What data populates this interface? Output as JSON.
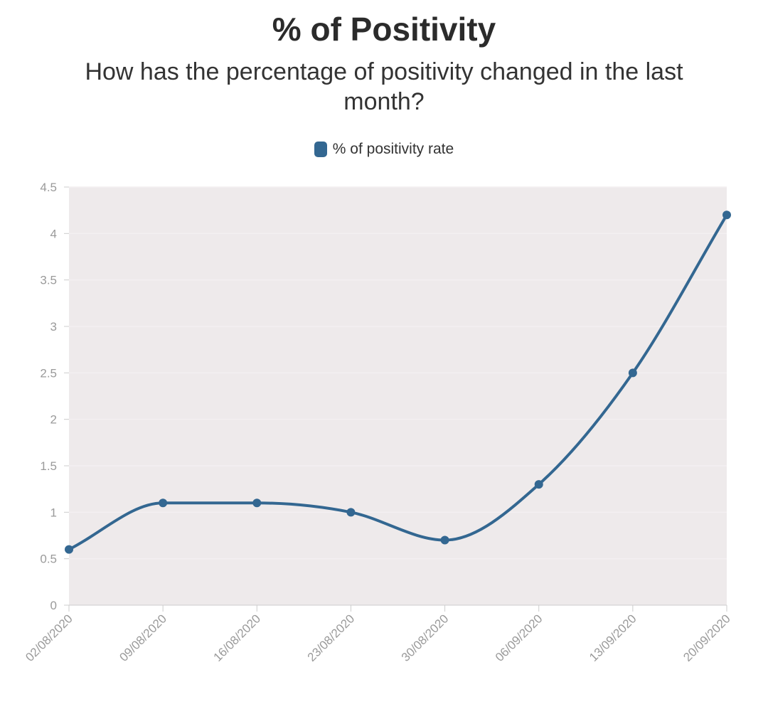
{
  "chart_data": {
    "type": "line",
    "title": "% of Positivity",
    "subtitle": "How has the percentage of positivity changed in the last month?",
    "categories": [
      "02/08/2020",
      "09/08/2020",
      "16/08/2020",
      "23/08/2020",
      "30/08/2020",
      "06/09/2020",
      "13/09/2020",
      "20/09/2020"
    ],
    "series": [
      {
        "name": "% of positivity rate",
        "values": [
          0.6,
          1.1,
          1.1,
          1.0,
          0.7,
          1.3,
          2.5,
          4.2
        ]
      }
    ],
    "yticks": [
      0,
      0.5,
      1,
      1.5,
      2,
      2.5,
      3,
      3.5,
      4,
      4.5
    ],
    "ylim": [
      0,
      4.5
    ],
    "xlabel": "",
    "ylabel": "",
    "legend_position": "top-center",
    "grid": true
  },
  "colors": {
    "line": "#336791",
    "plot_background": "#eeeaeb",
    "tick_label": "#9a9a9a"
  }
}
